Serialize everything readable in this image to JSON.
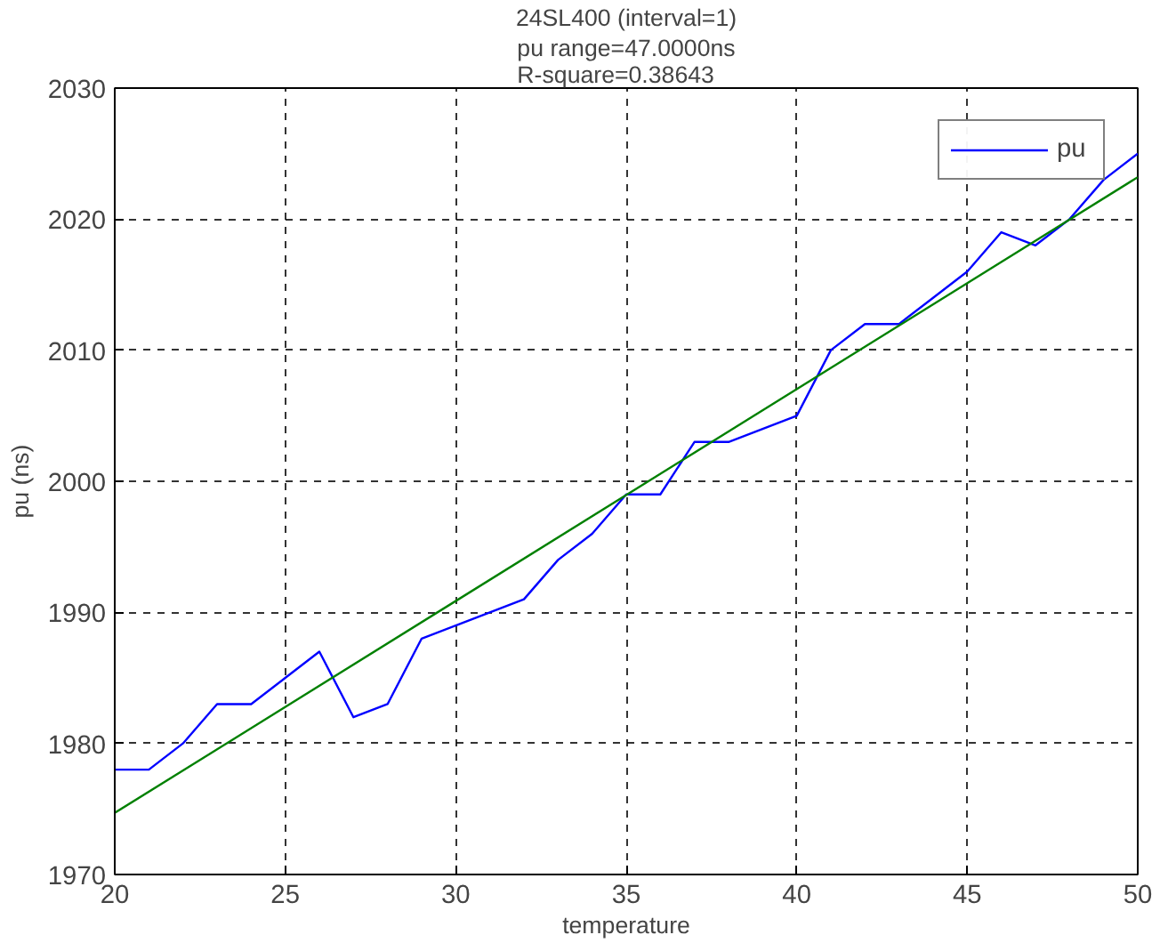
{
  "chart_data": {
    "type": "line",
    "title": "24SL400 (interval=1)",
    "subtitle": "pu range=47.0000ns\nR-square=0.38643",
    "xlabel": "temperature",
    "ylabel": "pu (ns)",
    "x": [
      20,
      21,
      22,
      23,
      24,
      25,
      26,
      27,
      28,
      29,
      30,
      31,
      32,
      33,
      34,
      35,
      36,
      37,
      38,
      39,
      40,
      41,
      42,
      43,
      44,
      45,
      46,
      47,
      48,
      49,
      50
    ],
    "series": [
      {
        "name": "pu",
        "color": "#0000ff",
        "values": [
          1978,
          1978,
          1980,
          1983,
          1983,
          1985,
          1987,
          1982,
          1983,
          1988,
          1989,
          1990,
          1991,
          1994,
          1996,
          1999,
          1999,
          2003,
          2003,
          2004,
          2005,
          2010,
          2012,
          2012,
          2014,
          2016,
          2019,
          2018,
          2020,
          2023,
          2025
        ]
      },
      {
        "type": "line",
        "color": "#008000",
        "x": [
          20,
          50
        ],
        "values": [
          1974.7,
          2023.2
        ]
      }
    ],
    "xlim": [
      20,
      50
    ],
    "xticks": [
      20,
      25,
      30,
      35,
      40,
      45,
      50
    ],
    "ylim": [
      1970,
      2030
    ],
    "yticks": [
      1970,
      1980,
      1990,
      2000,
      2010,
      2020,
      2030
    ],
    "grid": true,
    "legend": "top right",
    "line_style": "solid",
    "marker": "none"
  }
}
